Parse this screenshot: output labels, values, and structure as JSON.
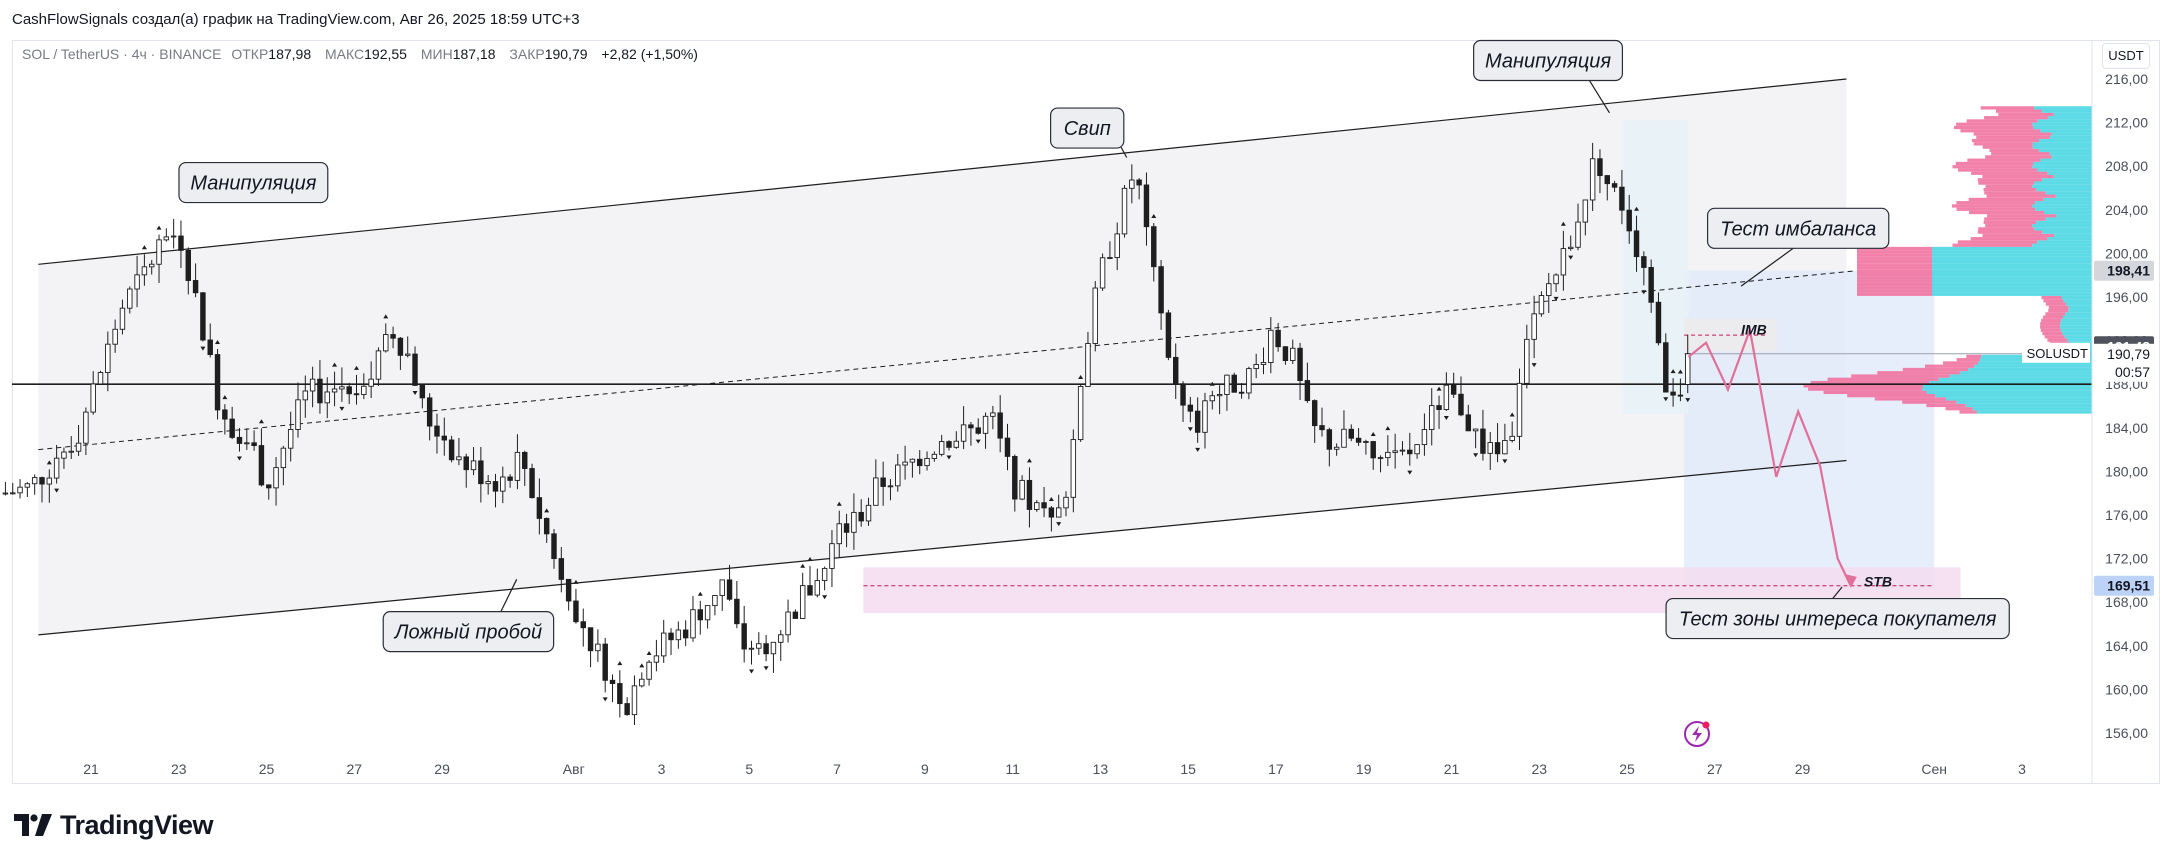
{
  "header": {
    "attribution": "CashFlowSignals создал(а) график на TradingView.com, Авг 26, 2025 18:59 UTC+3"
  },
  "legend": {
    "symbol": "SOL / TetherUS · 4ч · BINANCE",
    "open_label": "ОТКР",
    "open_value": "187,98",
    "high_label": "МАКС",
    "high_value": "192,55",
    "low_label": "МИН",
    "low_value": "187,18",
    "close_label": "ЗАКР",
    "close_value": "190,79",
    "change": "+2,82 (+1,50%)"
  },
  "currency_button": "USDT",
  "footer": {
    "brand": "TradingView"
  },
  "colors": {
    "up_body": "#ffffff",
    "down_body": "#1e1e1e",
    "candle_outline": "#1e1e1e",
    "channel_fill": "#f3f3f5",
    "buyer_zone": "#f3dcef",
    "imbalance_zone": "#ececef",
    "projection_zone": "#dfe8fa",
    "projection_arrow": "#e0709a",
    "volume_cyan": "#3fd3e2",
    "volume_pink": "#f06b9a",
    "badge_blue": "#bcd2f7",
    "badge_gray": "#d4d6dc"
  },
  "chart_data": {
    "type": "candlestick",
    "symbol": "SOL / TetherUS",
    "exchange": "BINANCE",
    "interval": "4ч",
    "ylim": [
      154,
      217
    ],
    "y_ticks": [
      "156,00",
      "160,00",
      "164,00",
      "168,00",
      "172,00",
      "176,00",
      "180,00",
      "184,00",
      "188,00",
      "192,00",
      "196,00",
      "200,00",
      "204,00",
      "208,00",
      "212,00",
      "216,00"
    ],
    "y_tick_values": [
      156,
      160,
      164,
      168,
      172,
      176,
      180,
      184,
      188,
      192,
      196,
      200,
      204,
      208,
      212,
      216
    ],
    "x_range_days": [
      0,
      42.8
    ],
    "x_ticks": [
      {
        "label": "21",
        "day": 2
      },
      {
        "label": "23",
        "day": 4
      },
      {
        "label": "25",
        "day": 6
      },
      {
        "label": "27",
        "day": 8
      },
      {
        "label": "29",
        "day": 10
      },
      {
        "label": "Авг",
        "day": 13
      },
      {
        "label": "3",
        "day": 15
      },
      {
        "label": "5",
        "day": 17
      },
      {
        "label": "7",
        "day": 19
      },
      {
        "label": "9",
        "day": 21
      },
      {
        "label": "11",
        "day": 23
      },
      {
        "label": "13",
        "day": 25
      },
      {
        "label": "15",
        "day": 27
      },
      {
        "label": "17",
        "day": 29
      },
      {
        "label": "19",
        "day": 31
      },
      {
        "label": "21",
        "day": 33
      },
      {
        "label": "23",
        "day": 35
      },
      {
        "label": "25",
        "day": 37
      },
      {
        "label": "27",
        "day": 39
      },
      {
        "label": "29",
        "day": 41
      },
      {
        "label": "Сен",
        "day": 44
      },
      {
        "label": "3",
        "day": 46
      }
    ],
    "close_path": [
      [
        0,
        178
      ],
      [
        0.6,
        178.5
      ],
      [
        1.2,
        181
      ],
      [
        1.7,
        183.5
      ],
      [
        2.2,
        189
      ],
      [
        2.7,
        195
      ],
      [
        3.2,
        198
      ],
      [
        3.6,
        201
      ],
      [
        4.0,
        202
      ],
      [
        4.3,
        197.5
      ],
      [
        4.6,
        192
      ],
      [
        4.9,
        186.5
      ],
      [
        5.2,
        184.5
      ],
      [
        5.7,
        182
      ],
      [
        6.0,
        178.5
      ],
      [
        6.4,
        182.5
      ],
      [
        6.9,
        187
      ],
      [
        7.3,
        187.5
      ],
      [
        7.9,
        188
      ],
      [
        8.4,
        189
      ],
      [
        8.9,
        193
      ],
      [
        9.3,
        190
      ],
      [
        9.6,
        185
      ],
      [
        10.0,
        183.5
      ],
      [
        10.4,
        181
      ],
      [
        10.8,
        180
      ],
      [
        11.3,
        179
      ],
      [
        11.8,
        181.5
      ],
      [
        12.3,
        175
      ],
      [
        12.8,
        170
      ],
      [
        13.3,
        165
      ],
      [
        13.8,
        161.5
      ],
      [
        14.2,
        158.5
      ],
      [
        14.6,
        162.5
      ],
      [
        15.0,
        164
      ],
      [
        15.5,
        165.5
      ],
      [
        16.0,
        168
      ],
      [
        16.4,
        170
      ],
      [
        16.8,
        164
      ],
      [
        17.3,
        164
      ],
      [
        17.8,
        166
      ],
      [
        18.2,
        168.5
      ],
      [
        18.6,
        170
      ],
      [
        19.0,
        174
      ],
      [
        19.5,
        176
      ],
      [
        20.0,
        179
      ],
      [
        20.5,
        180
      ],
      [
        21.0,
        182
      ],
      [
        21.5,
        183
      ],
      [
        22.0,
        183.5
      ],
      [
        22.5,
        185
      ],
      [
        23.0,
        179
      ],
      [
        23.5,
        176.5
      ],
      [
        24.0,
        175
      ],
      [
        24.3,
        180
      ],
      [
        24.6,
        190
      ],
      [
        25.0,
        198
      ],
      [
        25.4,
        203
      ],
      [
        25.8,
        208
      ],
      [
        26.1,
        200
      ],
      [
        26.5,
        192
      ],
      [
        26.8,
        186
      ],
      [
        27.2,
        184
      ],
      [
        27.6,
        187
      ],
      [
        28.0,
        188
      ],
      [
        28.5,
        189
      ],
      [
        28.9,
        193
      ],
      [
        29.4,
        190
      ],
      [
        29.8,
        184
      ],
      [
        30.3,
        182.5
      ],
      [
        30.7,
        183
      ],
      [
        31.2,
        181
      ],
      [
        31.6,
        180.5
      ],
      [
        32.0,
        181.5
      ],
      [
        32.4,
        184
      ],
      [
        32.8,
        187
      ],
      [
        33.2,
        186
      ],
      [
        33.6,
        183
      ],
      [
        34.0,
        181
      ],
      [
        34.4,
        184
      ],
      [
        34.8,
        193
      ],
      [
        35.2,
        197
      ],
      [
        35.6,
        200
      ],
      [
        36.0,
        205
      ],
      [
        36.3,
        209
      ],
      [
        36.6,
        206
      ],
      [
        36.9,
        204.5
      ],
      [
        37.2,
        201
      ],
      [
        37.5,
        196
      ],
      [
        37.8,
        189
      ],
      [
        38.0,
        186.5
      ],
      [
        38.2,
        187.5
      ],
      [
        38.4,
        190.79
      ]
    ],
    "annotations": [
      {
        "text": "Манипуляция",
        "day": 5.7,
        "price": 206.5
      },
      {
        "text": "Свип",
        "day": 24.7,
        "price": 211.5
      },
      {
        "text": "Манипуляция",
        "day": 35.2,
        "price": 217.7
      },
      {
        "text": "Ложный пробой",
        "day": 10.6,
        "price": 165.3
      },
      {
        "text": "Тест имбаланса",
        "day": 40.9,
        "price": 202.3
      },
      {
        "text": "Тест зоны интереса покупателя",
        "day": 41.8,
        "price": 166.5
      }
    ],
    "zone_labels": [
      {
        "text": "IMB",
        "day": 39.6,
        "price": 193.0
      },
      {
        "text": "STB",
        "day": 42.4,
        "price": 169.9
      }
    ],
    "price_badges": [
      {
        "value": "198,41",
        "price": 198.41,
        "style": "gray"
      },
      {
        "value": "191,48",
        "price": 191.48,
        "style": "dark"
      },
      {
        "value": "169,51",
        "price": 169.51,
        "style": "blue"
      }
    ],
    "last_price": {
      "symbol": "SOLUSDT",
      "value": "190,79",
      "countdown": "00:57",
      "price": 190.79
    },
    "horizontal_line_price": 188.0,
    "channel": {
      "upper": [
        [
          0.8,
          199
        ],
        [
          42.0,
          216
        ]
      ],
      "lower": [
        [
          0.8,
          165
        ],
        [
          42.0,
          181
        ]
      ],
      "midline": [
        [
          0.8,
          182
        ],
        [
          42.2,
          198.4
        ]
      ]
    },
    "projection_path": [
      [
        38.4,
        190.5
      ],
      [
        38.8,
        191.8
      ],
      [
        39.3,
        187.5
      ],
      [
        39.8,
        193
      ],
      [
        40.4,
        179.5
      ],
      [
        40.9,
        185.5
      ],
      [
        41.4,
        180.5
      ],
      [
        41.8,
        172
      ],
      [
        42.1,
        169.5
      ]
    ]
  }
}
